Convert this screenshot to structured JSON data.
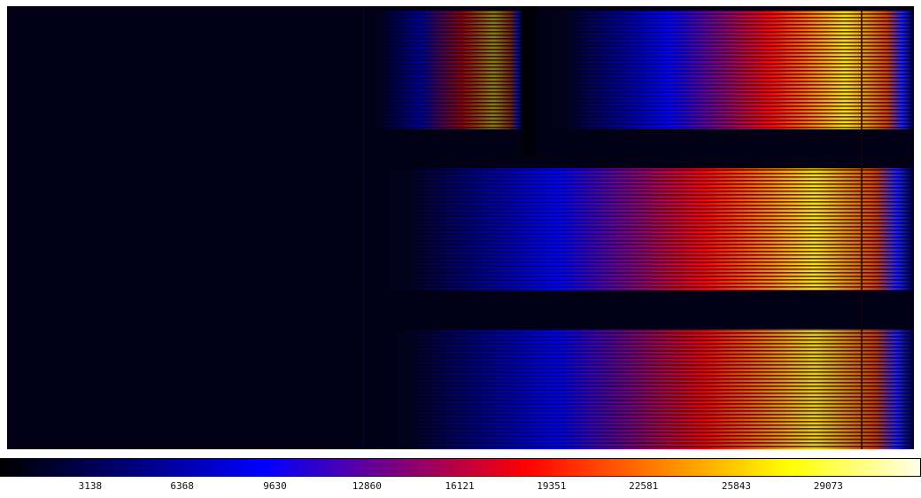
{
  "image_viewer": {
    "colormap": "blue-red-yellow-white",
    "colormap_stops": [
      "#000000",
      "#00007a",
      "#0000ff",
      "#7a0080",
      "#ff0000",
      "#ff7f00",
      "#ffff00",
      "#ffffe8"
    ],
    "background_color": "#010014"
  },
  "colorbar": {
    "min": 0,
    "max": 32300,
    "ticks": [
      "3138",
      "6368",
      "9630",
      "12860",
      "16121",
      "19351",
      "22581",
      "25843",
      "29073"
    ],
    "tick_values": [
      3138,
      6368,
      9630,
      12860,
      16121,
      19351,
      22581,
      25843,
      29073
    ]
  }
}
